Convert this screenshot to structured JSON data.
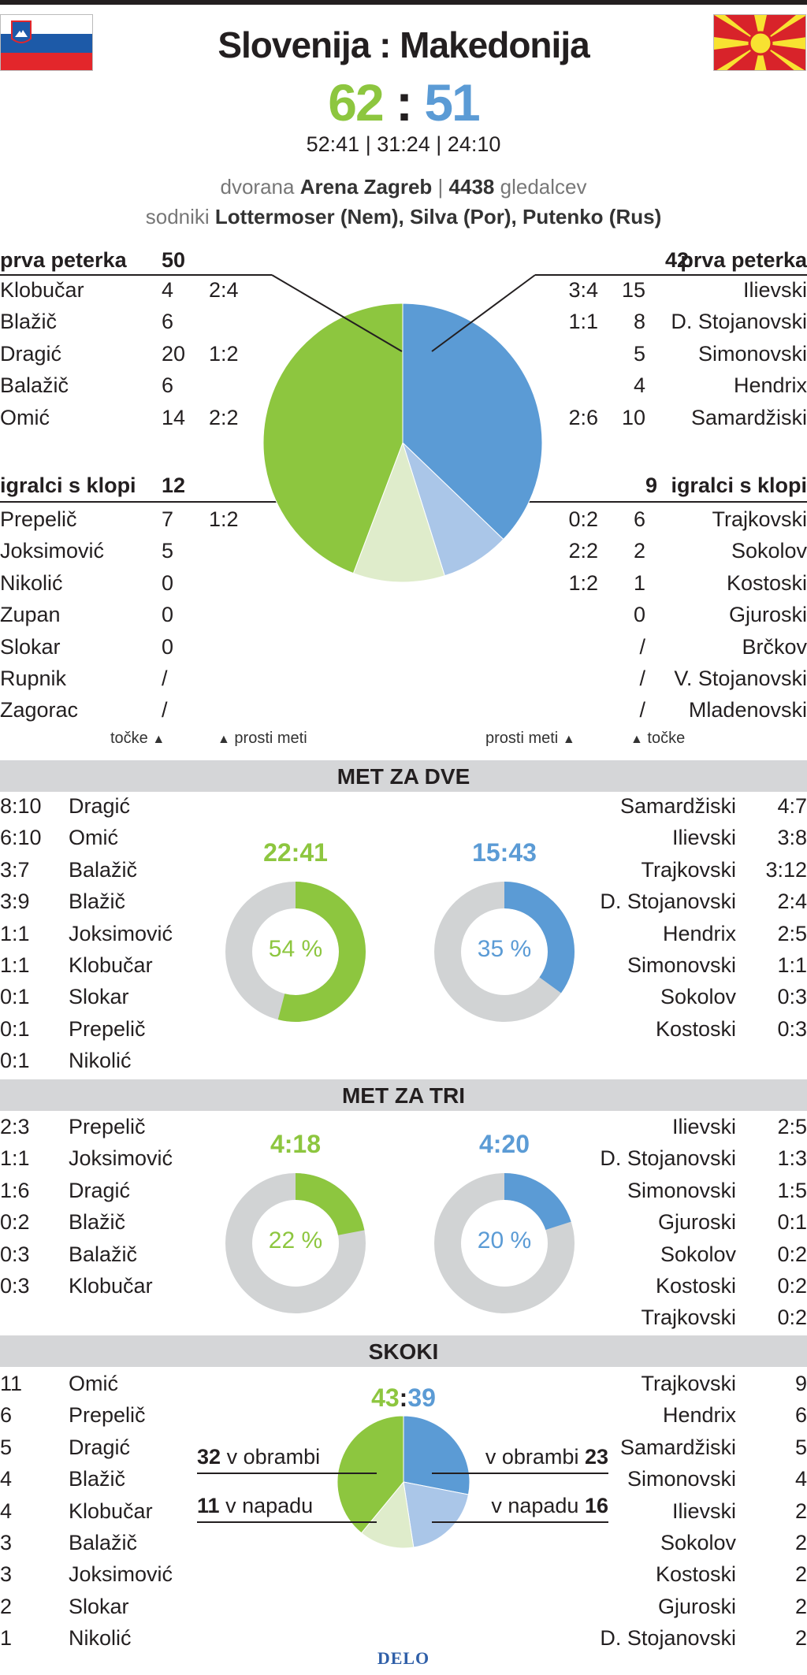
{
  "header": {
    "home_team": "Slovenija",
    "separator": ":",
    "away_team": "Makedonija",
    "home_score": "62",
    "away_score": "51",
    "quarters": "52:41 | 31:24 | 24:10",
    "venue_prefix": "dvorana",
    "venue": "Arena Zagreb",
    "venue_sep": "|",
    "spectators": "4438",
    "spectators_suffix": "gledalcev",
    "referees_prefix": "sodniki",
    "referees": "Lottermoser (Nem), Silva (Por), Putenko (Rus)"
  },
  "colors": {
    "home": "#8dc63f",
    "home_light": "#dfeccb",
    "away": "#5b9bd5",
    "away_light": "#aac6e8",
    "track": "#d1d3d4"
  },
  "lineup": {
    "home_starters_label": "prva peterka",
    "home_starters_total": "50",
    "away_starters_label": "prva peterka",
    "away_starters_total": "42",
    "home_bench_label": "igralci s klopi",
    "home_bench_total": "12",
    "away_bench_label": "igralci s klopi",
    "away_bench_total": "9",
    "home_starters": [
      {
        "name": "Klobučar",
        "pts": "4",
        "ft": "2:4"
      },
      {
        "name": "Blažič",
        "pts": "6",
        "ft": ""
      },
      {
        "name": "Dragić",
        "pts": "20",
        "ft": "1:2"
      },
      {
        "name": "Balažič",
        "pts": "6",
        "ft": ""
      },
      {
        "name": "Omić",
        "pts": "14",
        "ft": "2:2"
      }
    ],
    "away_starters": [
      {
        "name": "Ilievski",
        "pts": "15",
        "ft": "3:4"
      },
      {
        "name": "D. Stojanovski",
        "pts": "8",
        "ft": "1:1"
      },
      {
        "name": "Simonovski",
        "pts": "5",
        "ft": ""
      },
      {
        "name": "Hendrix",
        "pts": "4",
        "ft": ""
      },
      {
        "name": "Samardžiski",
        "pts": "10",
        "ft": "2:6"
      }
    ],
    "home_bench": [
      {
        "name": "Prepelič",
        "pts": "7",
        "ft": "1:2"
      },
      {
        "name": "Joksimović",
        "pts": "5",
        "ft": ""
      },
      {
        "name": "Nikolić",
        "pts": "0",
        "ft": ""
      },
      {
        "name": "Zupan",
        "pts": "0",
        "ft": ""
      },
      {
        "name": "Slokar",
        "pts": "0",
        "ft": ""
      },
      {
        "name": "Rupnik",
        "pts": "/",
        "ft": ""
      },
      {
        "name": "Zagorac",
        "pts": "/",
        "ft": ""
      }
    ],
    "away_bench": [
      {
        "name": "Trajkovski",
        "pts": "6",
        "ft": "0:2"
      },
      {
        "name": "Sokolov",
        "pts": "2",
        "ft": "2:2"
      },
      {
        "name": "Kostoski",
        "pts": "1",
        "ft": "1:2"
      },
      {
        "name": "Gjuroski",
        "pts": "0",
        "ft": ""
      },
      {
        "name": "Brčkov",
        "pts": "/",
        "ft": ""
      },
      {
        "name": "V. Stojanovski",
        "pts": "/",
        "ft": ""
      },
      {
        "name": "Mladenovski",
        "pts": "/",
        "ft": ""
      }
    ],
    "legend_points": "točke",
    "legend_ft": "prosti meti",
    "pie": {
      "home_starters": 50,
      "home_bench": 12,
      "away_bench": 9,
      "away_starters": 42
    }
  },
  "two_point": {
    "title": "MET ZA DVE",
    "home_total": "22:41",
    "home_pct_label": "54 %",
    "home_pct": 54,
    "away_total": "15:43",
    "away_pct_label": "35 %",
    "away_pct": 35,
    "home": [
      {
        "stat": "8:10",
        "name": "Dragić"
      },
      {
        "stat": "6:10",
        "name": "Omić"
      },
      {
        "stat": "3:7",
        "name": "Balažič"
      },
      {
        "stat": "3:9",
        "name": "Blažič"
      },
      {
        "stat": "1:1",
        "name": "Joksimović"
      },
      {
        "stat": "1:1",
        "name": "Klobučar"
      },
      {
        "stat": "0:1",
        "name": "Slokar"
      },
      {
        "stat": "0:1",
        "name": "Prepelič"
      },
      {
        "stat": "0:1",
        "name": "Nikolić"
      }
    ],
    "away": [
      {
        "name": "Samardžiski",
        "stat": "4:7"
      },
      {
        "name": "Ilievski",
        "stat": "3:8"
      },
      {
        "name": "Trajkovski",
        "stat": "3:12"
      },
      {
        "name": "D. Stojanovski",
        "stat": "2:4"
      },
      {
        "name": "Hendrix",
        "stat": "2:5"
      },
      {
        "name": "Simonovski",
        "stat": "1:1"
      },
      {
        "name": "Sokolov",
        "stat": "0:3"
      },
      {
        "name": "Kostoski",
        "stat": "0:3"
      }
    ]
  },
  "three_point": {
    "title": "MET ZA TRI",
    "home_total": "4:18",
    "home_pct_label": "22 %",
    "home_pct": 22,
    "away_total": "4:20",
    "away_pct_label": "20 %",
    "away_pct": 20,
    "home": [
      {
        "stat": "2:3",
        "name": "Prepelič"
      },
      {
        "stat": "1:1",
        "name": "Joksimović"
      },
      {
        "stat": "1:6",
        "name": "Dragić"
      },
      {
        "stat": "0:2",
        "name": "Blažič"
      },
      {
        "stat": "0:3",
        "name": "Balažič"
      },
      {
        "stat": "0:3",
        "name": "Klobučar"
      }
    ],
    "away": [
      {
        "name": "Ilievski",
        "stat": "2:5"
      },
      {
        "name": "D. Stojanovski",
        "stat": "1:3"
      },
      {
        "name": "Simonovski",
        "stat": "1:5"
      },
      {
        "name": "Gjuroski",
        "stat": "0:1"
      },
      {
        "name": "Sokolov",
        "stat": "0:2"
      },
      {
        "name": "Kostoski",
        "stat": "0:2"
      },
      {
        "name": "Trajkovski",
        "stat": "0:2"
      }
    ]
  },
  "rebounds": {
    "title": "SKOKI",
    "home_total": "43",
    "sep": ":",
    "away_total": "39",
    "home_def_value": "32",
    "home_def_label": "v obrambi",
    "home_off_value": "11",
    "home_off_label": "v napadu",
    "away_def_label": "v obrambi",
    "away_def_value": "23",
    "away_off_label": "v napadu",
    "away_off_value": "16",
    "pie": {
      "home_def": 32,
      "home_off": 11,
      "away_off": 16,
      "away_def": 23
    },
    "home": [
      {
        "stat": "11",
        "name": "Omić"
      },
      {
        "stat": "6",
        "name": "Prepelič"
      },
      {
        "stat": "5",
        "name": "Dragić"
      },
      {
        "stat": "4",
        "name": "Blažič"
      },
      {
        "stat": "4",
        "name": "Klobučar"
      },
      {
        "stat": "3",
        "name": "Balažič"
      },
      {
        "stat": "3",
        "name": "Joksimović"
      },
      {
        "stat": "2",
        "name": "Slokar"
      },
      {
        "stat": "1",
        "name": "Nikolić"
      }
    ],
    "away": [
      {
        "name": "Trajkovski",
        "stat": "9"
      },
      {
        "name": "Hendrix",
        "stat": "6"
      },
      {
        "name": "Samardžiski",
        "stat": "5"
      },
      {
        "name": "Simonovski",
        "stat": "4"
      },
      {
        "name": "Ilievski",
        "stat": "2"
      },
      {
        "name": "Sokolov",
        "stat": "2"
      },
      {
        "name": "Kostoski",
        "stat": "2"
      },
      {
        "name": "Gjuroski",
        "stat": "2"
      },
      {
        "name": "D. Stojanovski",
        "stat": "2"
      }
    ]
  },
  "footer": {
    "brand": "DELO"
  }
}
